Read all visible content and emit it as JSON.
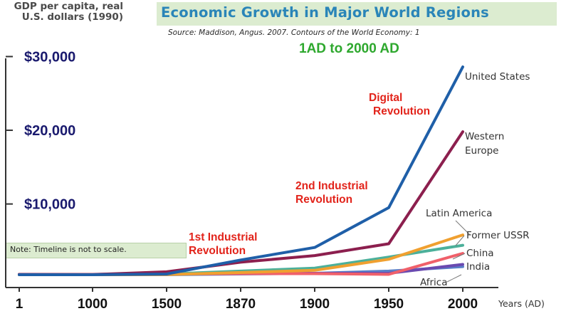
{
  "chart_data": {
    "type": "line",
    "title": "Economic Growth in Major World Regions",
    "subtitle": "Source: Maddison, Angus. 2007. Contours of the World Economy: 1",
    "period_label": "1AD to 2000 AD",
    "ylabel": "GDP per capita, real U.S. dollars (1990)",
    "xlabel": "Years (AD)",
    "x": [
      "1",
      "1000",
      "1500",
      "1870",
      "1900",
      "1950",
      "2000"
    ],
    "ylim": [
      -1000,
      32000
    ],
    "yticks": [
      {
        "value": 30000,
        "label": "$30,000"
      },
      {
        "value": 20000,
        "label": "$20,000"
      },
      {
        "value": 10000,
        "label": "$10,000"
      }
    ],
    "note": "Note: Timeline is not to scale.",
    "annotations": [
      {
        "id": "first",
        "lines": [
          "1st Industrial",
          "Revolution"
        ]
      },
      {
        "id": "second",
        "lines": [
          "2nd Industrial",
          "Revolution"
        ]
      },
      {
        "id": "digital",
        "lines": [
          "Digital",
          "Revolution"
        ]
      }
    ],
    "series": [
      {
        "name": "United States",
        "color": "#1f5fa8",
        "values": [
          400,
          400,
          500,
          2400,
          4100,
          9500,
          28600
        ]
      },
      {
        "name": "Western Europe",
        "color": "#8c1f4e",
        "values": [
          450,
          420,
          800,
          2100,
          3000,
          4600,
          19800
        ]
      },
      {
        "name": "Latin America",
        "color": "#f0a030",
        "values": [
          400,
          400,
          420,
          700,
          1000,
          2500,
          5800
        ]
      },
      {
        "name": "Former USSR",
        "color": "#4cb09a",
        "values": [
          400,
          400,
          500,
          900,
          1300,
          2800,
          4400
        ]
      },
      {
        "name": "China",
        "color": "#f0606a",
        "values": [
          450,
          450,
          500,
          550,
          550,
          450,
          3300
        ]
      },
      {
        "name": "India",
        "color": "#6a4ab0",
        "values": [
          450,
          450,
          550,
          550,
          600,
          600,
          1800
        ]
      },
      {
        "name": "Africa",
        "color": "#5a80c8",
        "values": [
          400,
          400,
          400,
          500,
          600,
          900,
          1500
        ]
      }
    ]
  }
}
